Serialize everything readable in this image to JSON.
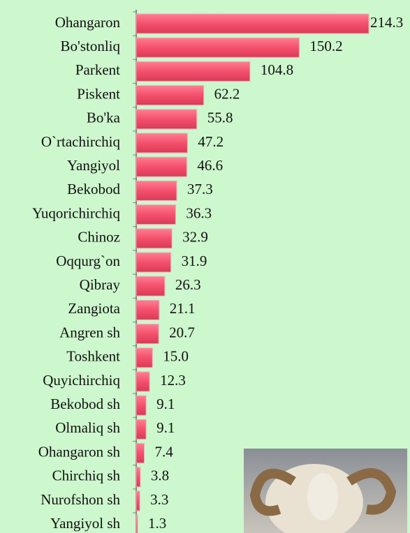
{
  "chart_data": {
    "type": "bar",
    "orientation": "horizontal",
    "categories": [
      "Ohangaron",
      "Bo'stonliq",
      "Parkent",
      "Piskent",
      "Bo'ka",
      "O`rtachirchiq",
      "Yangiyol",
      "Bekobod",
      "Yuqorichirchiq",
      "Chinoz",
      "Oqqurg`on",
      "Qibray",
      "Zangiota",
      "Angren sh",
      "Toshkent",
      "Quyichirchiq",
      "Bekobod sh",
      "Olmaliq sh",
      "Ohangaron sh",
      "Chirchiq sh",
      "Nurofshon sh",
      "Yangiyol sh"
    ],
    "values": [
      214.3,
      150.2,
      104.8,
      62.2,
      55.8,
      47.2,
      46.6,
      37.3,
      36.3,
      32.9,
      31.9,
      26.3,
      21.1,
      20.7,
      15.0,
      12.3,
      9.1,
      9.1,
      7.4,
      3.8,
      3.3,
      1.3
    ],
    "value_labels": [
      "214.3",
      "150.2",
      "104.8",
      "62.2",
      "55.8",
      "47.2",
      "46.6",
      "37.3",
      "36.3",
      "32.9",
      "31.9",
      "26.3",
      "21.1",
      "20.7",
      "15.0",
      "12.3",
      "9.1",
      "9.1",
      "7.4",
      "3.8",
      "3.3",
      "1.3"
    ],
    "color": "#f4506c"
  }
}
